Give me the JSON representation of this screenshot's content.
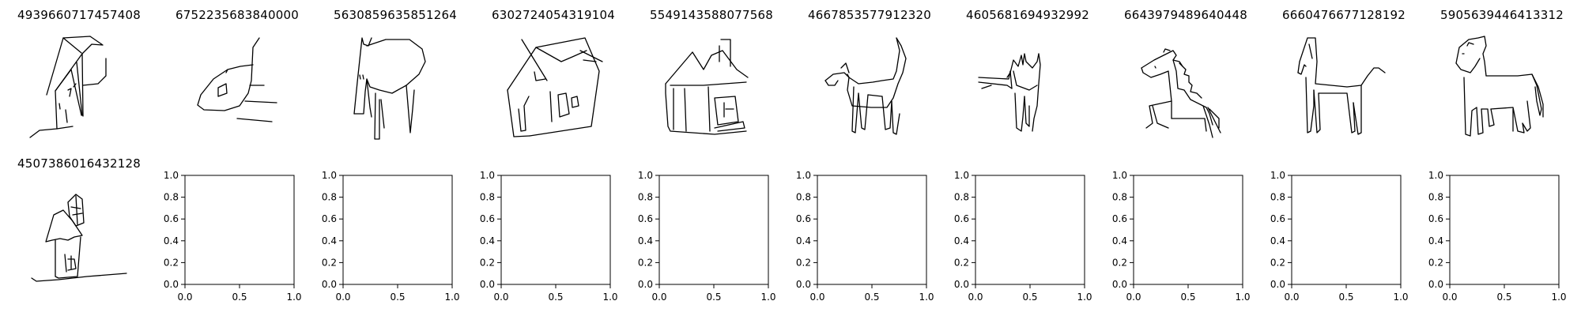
{
  "panels": [
    {
      "id": "4939660717457408"
    },
    {
      "id": "6752235683840000"
    },
    {
      "id": "5630859635851264"
    },
    {
      "id": "6302724054319104"
    },
    {
      "id": "5549143588077568"
    },
    {
      "id": "4667853577912320"
    },
    {
      "id": "4605681694932992"
    },
    {
      "id": "6643979489640448"
    },
    {
      "id": "6660476677128192"
    },
    {
      "id": "5905639446413312"
    },
    {
      "id": "4507386016432128"
    }
  ],
  "empty_axes": {
    "x_ticks": [
      "0.0",
      "0.5",
      "1.0"
    ],
    "y_ticks": [
      "0.0",
      "0.2",
      "0.4",
      "0.6",
      "0.8",
      "1.0"
    ]
  }
}
